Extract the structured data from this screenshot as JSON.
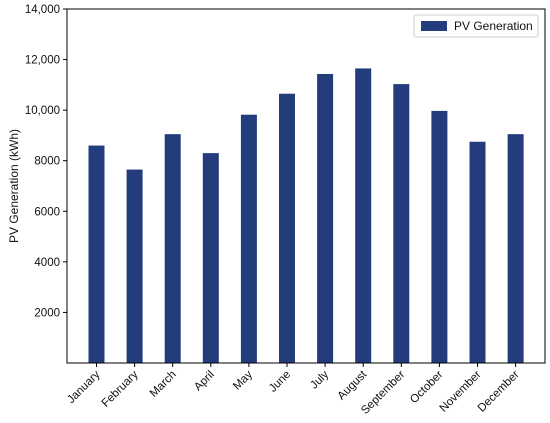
{
  "chart_data": {
    "type": "bar",
    "categories": [
      "January",
      "February",
      "March",
      "April",
      "May",
      "June",
      "July",
      "August",
      "September",
      "October",
      "November",
      "December"
    ],
    "series": [
      {
        "name": "PV Generation",
        "color": "#233c7b",
        "values": [
          8600,
          7650,
          9050,
          8300,
          9820,
          10650,
          11430,
          11650,
          11030,
          9970,
          8750,
          9050
        ]
      }
    ],
    "title": "",
    "xlabel": "",
    "ylabel": "PV Generation (kWh)",
    "ylim": [
      0,
      14000
    ],
    "yticks": [
      2000,
      4000,
      6000,
      8000,
      10000,
      12000,
      14000
    ],
    "ytick_labels": [
      "2000",
      "4000",
      "6000",
      "8000",
      "10,000",
      "12,000",
      "14,000"
    ],
    "grid": false,
    "legend_position": "top-right"
  }
}
